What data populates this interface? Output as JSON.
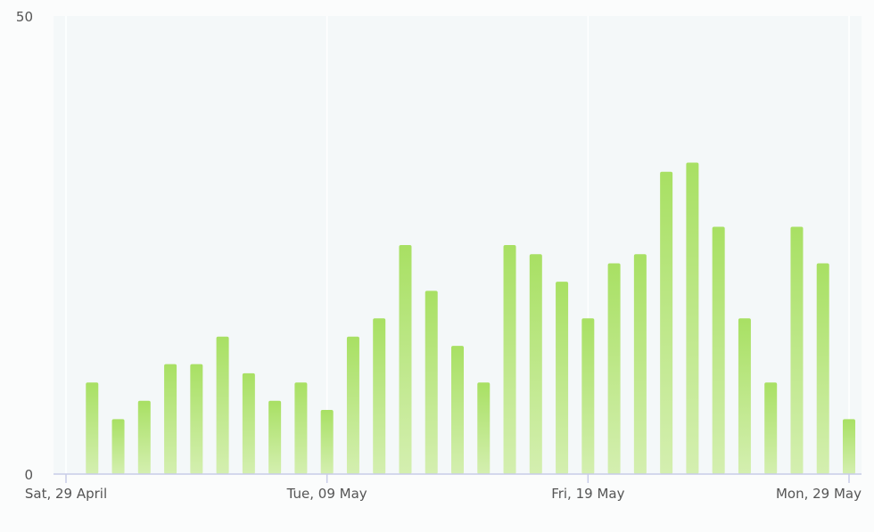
{
  "chart_data": {
    "type": "bar",
    "title": "",
    "xlabel": "",
    "ylabel": "",
    "x": [
      "2023-04-30",
      "2023-05-01",
      "2023-05-02",
      "2023-05-03",
      "2023-05-04",
      "2023-05-05",
      "2023-05-06",
      "2023-05-07",
      "2023-05-08",
      "2023-05-09",
      "2023-05-10",
      "2023-05-11",
      "2023-05-12",
      "2023-05-13",
      "2023-05-14",
      "2023-05-15",
      "2023-05-16",
      "2023-05-17",
      "2023-05-18",
      "2023-05-19",
      "2023-05-20",
      "2023-05-21",
      "2023-05-22",
      "2023-05-23",
      "2023-05-24",
      "2023-05-25",
      "2023-05-26",
      "2023-05-27",
      "2023-05-28",
      "2023-05-29"
    ],
    "values": [
      10,
      6,
      8,
      12,
      12,
      15,
      11,
      8,
      10,
      7,
      15,
      17,
      25,
      20,
      14,
      10,
      25,
      24,
      21,
      17,
      23,
      24,
      33,
      34,
      27,
      17,
      10,
      27,
      23,
      6
    ],
    "xlim": [
      "2023-04-29",
      "2023-05-29"
    ],
    "ylim": [
      0,
      50
    ],
    "x_ticks": [
      {
        "date": "2023-04-29",
        "label": "Sat, 29 April"
      },
      {
        "date": "2023-05-09",
        "label": "Tue, 09 May"
      },
      {
        "date": "2023-05-19",
        "label": "Fri, 19 May"
      },
      {
        "date": "2023-05-29",
        "label": "Mon, 29 May"
      }
    ],
    "y_ticks": [
      "0",
      "50"
    ],
    "grid": true,
    "colors": {
      "bar_top": "#a8e063",
      "bar_bottom": "#d4efb0",
      "plot_bg": "#f4f8f9",
      "axis": "#c8cce8",
      "grid": "#ffffff"
    }
  }
}
